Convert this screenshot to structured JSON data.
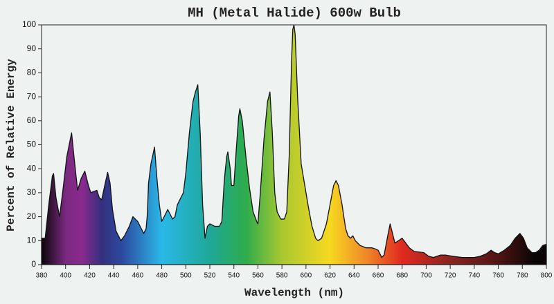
{
  "chart_data": {
    "type": "area",
    "title": "MH (Metal Halide) 600w Bulb",
    "x_label": "Wavelength (nm)",
    "y_label": "Percent of Relative Energy",
    "x": [
      380,
      383,
      386,
      389,
      390,
      392,
      395,
      398,
      401,
      405,
      407,
      410,
      413,
      416,
      419,
      421,
      426,
      428,
      430,
      433,
      435,
      437,
      439,
      442,
      446,
      449,
      453,
      456,
      460,
      463,
      465,
      467,
      468,
      469,
      471,
      474,
      476,
      478,
      480,
      483,
      485,
      487,
      489,
      491,
      493,
      496,
      498,
      500,
      503,
      506,
      508,
      510,
      512,
      514,
      516,
      518,
      520,
      524,
      528,
      530,
      532,
      534,
      535,
      537,
      538,
      540,
      542,
      544,
      545,
      547,
      550,
      553,
      556,
      559,
      560,
      562,
      565,
      568,
      570,
      572,
      574,
      576,
      579,
      582,
      584,
      586,
      588,
      589,
      590,
      591,
      593,
      596,
      599,
      602,
      605,
      608,
      610,
      613,
      617,
      620,
      623,
      625,
      627,
      630,
      633,
      635,
      637,
      639,
      641,
      645,
      650,
      655,
      658,
      660,
      663,
      665,
      668,
      670,
      672,
      674,
      677,
      680,
      683,
      686,
      690,
      698,
      702,
      706,
      712,
      716,
      722,
      730,
      740,
      745,
      750,
      754,
      757,
      760,
      765,
      770,
      774,
      778,
      781,
      784,
      788,
      791,
      794,
      797,
      800
    ],
    "values": [
      11,
      11,
      25,
      37,
      38,
      28,
      20,
      32,
      45,
      55,
      45,
      31,
      36,
      39,
      33,
      30,
      31,
      28,
      27,
      34,
      38.5,
      34,
      23,
      14,
      10,
      12,
      16,
      20,
      18,
      15,
      13,
      15,
      21,
      34,
      42,
      49,
      36,
      25,
      18,
      21,
      23,
      21,
      19,
      20,
      25,
      28,
      30,
      38,
      55,
      68,
      72,
      75,
      55,
      25,
      11,
      16,
      17,
      16,
      16,
      18,
      35,
      45,
      47,
      40,
      33,
      33,
      48,
      62,
      65,
      60,
      45,
      32,
      22,
      18,
      17,
      30,
      52,
      68,
      72,
      55,
      30,
      22,
      19,
      19,
      22,
      45,
      85,
      98,
      100,
      96,
      70,
      42,
      33,
      24,
      16,
      11,
      10,
      11,
      17,
      25,
      33,
      35,
      33,
      25,
      15,
      12,
      11,
      12,
      10,
      8,
      7,
      7,
      6.5,
      6,
      3,
      4,
      12,
      17,
      13,
      9,
      10,
      11,
      9,
      7,
      5.5,
      5,
      3.5,
      3,
      4,
      4,
      3.5,
      3,
      3,
      3.5,
      4.5,
      6,
      5,
      4.5,
      6,
      8,
      11,
      13,
      11,
      7,
      5,
      5,
      6,
      8,
      8.5
    ],
    "xlim": [
      380,
      800
    ],
    "ylim": [
      0,
      100
    ],
    "xticks": [
      380,
      400,
      420,
      440,
      460,
      480,
      500,
      520,
      540,
      560,
      580,
      600,
      620,
      640,
      660,
      680,
      700,
      720,
      740,
      760,
      780,
      800
    ],
    "yticks": [
      0,
      10,
      20,
      30,
      40,
      50,
      60,
      70,
      80,
      90,
      100
    ]
  }
}
